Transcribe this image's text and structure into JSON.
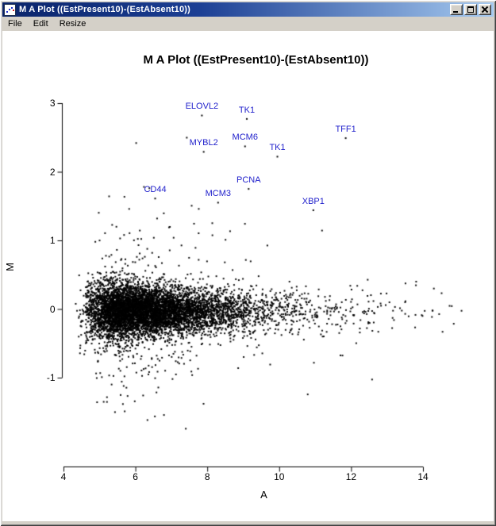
{
  "window": {
    "title": "M A Plot ((EstPresent10)-(EstAbsent10))"
  },
  "menu_bar": {
    "items": [
      {
        "label": "File"
      },
      {
        "label": "Edit"
      },
      {
        "label": "Resize"
      }
    ]
  },
  "chart_data": {
    "type": "scatter",
    "title": "M A Plot ((EstPresent10)-(EstAbsent10))",
    "xlabel": "A",
    "ylabel": "M",
    "xlim": [
      4,
      15.5
    ],
    "ylim": [
      -2.3,
      3.1
    ],
    "x_ticks": [
      4,
      6,
      8,
      10,
      12,
      14
    ],
    "y_ticks": [
      -1,
      0,
      1,
      2,
      3
    ],
    "grid": false,
    "legend": false,
    "point_color": "#000000",
    "gene_label_color": "#2222cc",
    "cloud": {
      "description": "Dense MA-plot cloud of ~7500 black probe points centered on M=0; densest for A between 5 and 8, thinning toward A=15.5; vertical spread about +/-0.5 with sparse outliers reaching M=3 and M=-1.8",
      "n_points": 7500,
      "seed": 42,
      "a_base": 4.0,
      "a_lognormal_mu": 0.85,
      "a_lognormal_sigma": 0.52,
      "m_mean_shift": -0.03,
      "m_sd_base": 0.16,
      "m_sd_low_a_extra": 0.12,
      "m_sd_decay": 1.5,
      "m_outlier_p1": 0.06,
      "m_outlier_sd1": 0.4,
      "m_outlier_p2": 0.015,
      "m_outlier_sd2": 0.8,
      "m_outlier_p3": 0.004,
      "m_outlier_sd3": 1.0
    },
    "labeled_points": [
      {
        "gene": "ELOVL2",
        "a": 7.85,
        "m": 2.95
      },
      {
        "gene": "TK1",
        "a": 9.1,
        "m": 2.9
      },
      {
        "gene": "TFF1",
        "a": 11.85,
        "m": 2.62
      },
      {
        "gene": "MYBL2",
        "a": 7.9,
        "m": 2.42
      },
      {
        "gene": "MCM6",
        "a": 9.05,
        "m": 2.5
      },
      {
        "gene": "TK1",
        "a": 9.95,
        "m": 2.35
      },
      {
        "gene": "PCNA",
        "a": 9.15,
        "m": 1.88
      },
      {
        "gene": "CD44",
        "a": 6.55,
        "m": 1.74
      },
      {
        "gene": "MCM3",
        "a": 8.3,
        "m": 1.68
      },
      {
        "gene": "XBP1",
        "a": 10.95,
        "m": 1.57
      }
    ]
  }
}
